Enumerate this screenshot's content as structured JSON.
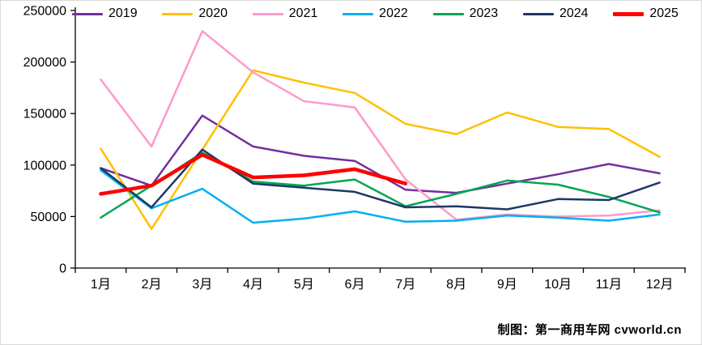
{
  "caption": "制图：第一商用车网 cvworld.cn",
  "chart_data": {
    "type": "line",
    "title": "",
    "xlabel": "",
    "ylabel": "",
    "categories": [
      "1月",
      "2月",
      "3月",
      "4月",
      "5月",
      "6月",
      "7月",
      "8月",
      "9月",
      "10月",
      "11月",
      "12月"
    ],
    "ylim": [
      0,
      250000
    ],
    "yticks": [
      0,
      50000,
      100000,
      150000,
      200000,
      250000
    ],
    "grid": false,
    "legend_position": "top",
    "axis_color": "#000000",
    "series": [
      {
        "name": "2019",
        "color": "#7030A0",
        "width": 2.5,
        "values": [
          97000,
          80000,
          148000,
          118000,
          109000,
          104000,
          76000,
          73000,
          82000,
          91000,
          101000,
          92000
        ]
      },
      {
        "name": "2020",
        "color": "#FFC000",
        "width": 2.5,
        "values": [
          116000,
          38000,
          115000,
          192000,
          180000,
          170000,
          140000,
          130000,
          151000,
          137000,
          135000,
          108000
        ]
      },
      {
        "name": "2021",
        "color": "#FF99CC",
        "width": 2.5,
        "values": [
          183000,
          118000,
          230000,
          190000,
          162000,
          156000,
          86000,
          47000,
          52000,
          50000,
          51000,
          56000
        ]
      },
      {
        "name": "2022",
        "color": "#00B0F0",
        "width": 2.5,
        "values": [
          95000,
          58000,
          77000,
          44000,
          48000,
          55000,
          45000,
          46000,
          51000,
          49000,
          46000,
          52000
        ]
      },
      {
        "name": "2023",
        "color": "#00A651",
        "width": 2.5,
        "values": [
          49000,
          80000,
          112000,
          84000,
          80000,
          86000,
          60000,
          72000,
          85000,
          81000,
          69000,
          54000
        ]
      },
      {
        "name": "2024",
        "color": "#1F3864",
        "width": 2.5,
        "values": [
          97000,
          59000,
          115000,
          82000,
          78000,
          74000,
          59000,
          60000,
          57000,
          67000,
          66000,
          83000
        ]
      },
      {
        "name": "2025",
        "color": "#FF0000",
        "width": 4.5,
        "values": [
          72000,
          80000,
          110000,
          88000,
          90000,
          96000,
          82000,
          null,
          null,
          null,
          null,
          null
        ]
      }
    ]
  }
}
